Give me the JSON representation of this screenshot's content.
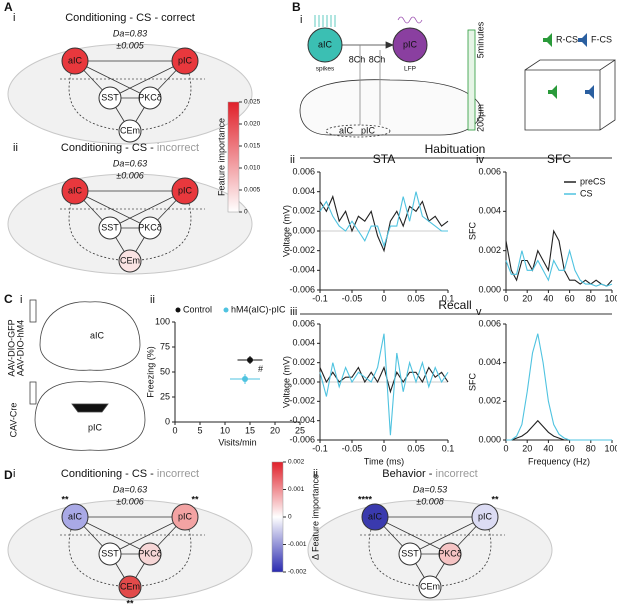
{
  "panel_labels": [
    "A",
    "B",
    "C",
    "D"
  ],
  "networks": [
    {
      "sub": "i",
      "title": [
        "Conditioning - CS - correct"
      ],
      "da": [
        "Da=0.83",
        "±0.005"
      ],
      "nodes": [
        {
          "label": "aIC",
          "color": "#e8383d"
        },
        {
          "label": "pIC",
          "color": "#e8383d"
        },
        {
          "label": "SST",
          "color": "#ffffff"
        },
        {
          "label": "PKCδ",
          "color": "#ffffff"
        },
        {
          "label": "CEm",
          "color": "#ffffff"
        }
      ]
    },
    {
      "sub": "ii",
      "title": [
        "Conditioning - CS - ",
        "incorrect"
      ],
      "da": [
        "Da=0.63",
        "±0.006"
      ],
      "nodes": [
        {
          "label": "aIC",
          "color": "#e8383d"
        },
        {
          "label": "pIC",
          "color": "#e8383d"
        },
        {
          "label": "SST",
          "color": "#ffffff"
        },
        {
          "label": "PKCδ",
          "color": "#ffffff"
        },
        {
          "label": "CEm",
          "color": "#fbe3e3"
        }
      ]
    },
    {
      "sub": "i",
      "title": [
        "Conditioning - CS - ",
        "incorrect"
      ],
      "da": [
        "Da=0.63",
        "±0.006"
      ],
      "nodes": [
        {
          "label": "aIC",
          "color": "#a9a9e6",
          "stars": "**"
        },
        {
          "label": "pIC",
          "color": "#f3a3a3",
          "stars": "**"
        },
        {
          "label": "SST",
          "color": "#ffffff"
        },
        {
          "label": "PKCδ",
          "color": "#f6d6d6"
        },
        {
          "label": "CEm",
          "color": "#e24a4a",
          "stars": "**"
        }
      ]
    },
    {
      "sub": "ii",
      "title": [
        "Behavior - ",
        "incorrect"
      ],
      "da": [
        "Da=0.53",
        "±0.008"
      ],
      "nodes": [
        {
          "label": "aIC",
          "color": "#3a3aae",
          "stars": "****"
        },
        {
          "label": "pIC",
          "color": "#dcdcf4",
          "stars": "**"
        },
        {
          "label": "SST",
          "color": "#ffffff"
        },
        {
          "label": "PKCδ",
          "color": "#f5c4c4"
        },
        {
          "label": "CEm",
          "color": "#ffffff"
        }
      ]
    }
  ],
  "colorbars": [
    {
      "label": "Feature importance",
      "lim": [
        0,
        0.025
      ],
      "colors": [
        "#ffffff",
        "#e0202a"
      ],
      "ticks": [
        0.025,
        {
          "value": 0.02,
          "label": "0.020"
        },
        0.015,
        {
          "value": 0.01,
          "label": "0.010"
        },
        0.005,
        0
      ]
    },
    {
      "label": "Δ Feature importance",
      "lim": [
        -0.002,
        0.002
      ],
      "colors": [
        "#2a2ab0",
        "#ffffff",
        "#e0202a"
      ],
      "ticks": [
        0.002,
        0.001,
        0,
        -0.001,
        -0.002
      ]
    }
  ],
  "b_diagram": {
    "sub": "i",
    "regions": [
      "aIC",
      "pIC"
    ],
    "signals": [
      "spikes",
      "LFP"
    ],
    "channels": [
      "8Ch",
      "8Ch"
    ],
    "brain_regions": [
      "aIC",
      "pIC"
    ],
    "time_scale": "5minutes",
    "depth_scale": "200µm",
    "sounds": [
      "R-CS",
      "F-CS"
    ]
  },
  "sections": [
    "Habituation",
    "Recall"
  ],
  "line_charts": [
    {
      "type": "line",
      "sub": "ii",
      "title": "STA",
      "y_label": "Voltage (mV)",
      "x": [
        -0.1,
        -0.09,
        -0.08,
        -0.07,
        -0.06,
        -0.05,
        -0.04,
        -0.03,
        -0.02,
        -0.01,
        0,
        0.01,
        0.02,
        0.03,
        0.04,
        0.05,
        0.06,
        0.07,
        0.08,
        0.09,
        0.1
      ],
      "xlim": [
        -0.1,
        0.1
      ],
      "xticks": [
        -0.1,
        -0.05,
        0,
        0.05,
        0.1
      ],
      "ylim": [
        -0.006,
        0.006
      ],
      "yticks": [
        0.006,
        0.004,
        0.002,
        {
          "value": 0,
          "label": "0.000"
        },
        -0.002,
        -0.004,
        -0.006
      ],
      "series": [
        {
          "name": "preCS",
          "color": "#222222",
          "values": [
            0.003,
            0.002,
            0.0035,
            0.001,
            0.002,
            0,
            0.0015,
            0.001,
            0.002,
            -0.0005,
            -0.002,
            0.001,
            0.002,
            0.0005,
            0.0025,
            0.002,
            0.003,
            0.001,
            0.0015,
            0.0005,
            0.001
          ]
        },
        {
          "name": "CS",
          "color": "#4fc3e0",
          "values": [
            0.002,
            0.003,
            0.0015,
            0.0005,
            0,
            0.001,
            0,
            -0.001,
            0.0005,
            0.0005,
            -0.0015,
            0.0005,
            0.0005,
            0.0035,
            0.001,
            0.004,
            0.0015,
            0.001,
            0.0005,
            0,
            0
          ]
        }
      ]
    },
    {
      "type": "line",
      "sub": "iv",
      "title": "SFC",
      "y_label": "SFC",
      "legend": true,
      "x": [
        0,
        5,
        10,
        15,
        20,
        25,
        30,
        35,
        40,
        45,
        50,
        55,
        60,
        65,
        70,
        75,
        80,
        85,
        90,
        95,
        100
      ],
      "xlim": [
        0,
        100
      ],
      "xticks": [
        0,
        20,
        40,
        60,
        80,
        100
      ],
      "ylim": [
        0,
        0.006
      ],
      "yticks": [
        {
          "value": 0,
          "label": "0.000"
        },
        0.002,
        0.004,
        0.006
      ],
      "series": [
        {
          "name": "preCS",
          "color": "#222222",
          "values": [
            0.0025,
            0.001,
            0.0005,
            0.0015,
            0.0015,
            0.001,
            0.002,
            0.0015,
            0.001,
            0.003,
            0.0025,
            0.001,
            0.0005,
            0.0005,
            0.0003,
            0.0005,
            0.0003,
            0.0005,
            0.0003,
            0.0002,
            0.0005
          ]
        },
        {
          "name": "CS",
          "color": "#4fc3e0",
          "values": [
            0.0015,
            0.0008,
            0.0008,
            0.002,
            0.001,
            0.001,
            0.0015,
            0.001,
            0.0005,
            0.0015,
            0.001,
            0.001,
            0.002,
            0.001,
            0.0005,
            0.0003,
            0.0003,
            0.0002,
            0.0003,
            0.0002,
            0.0003
          ]
        }
      ]
    },
    {
      "type": "line",
      "sub": "iii",
      "y_label": "Voltage (mV)",
      "x_label": "Time (ms)",
      "x": [
        -0.1,
        -0.09,
        -0.08,
        -0.07,
        -0.06,
        -0.05,
        -0.04,
        -0.03,
        -0.02,
        -0.01,
        0,
        0.01,
        0.02,
        0.03,
        0.04,
        0.05,
        0.06,
        0.07,
        0.08,
        0.09,
        0.1
      ],
      "xlim": [
        -0.1,
        0.1
      ],
      "xticks": [
        -0.1,
        -0.05,
        0,
        0.05,
        0.1
      ],
      "ylim": [
        -0.006,
        0.006
      ],
      "yticks": [
        0.006,
        0.004,
        0.002,
        {
          "value": 0,
          "label": "0.000"
        },
        -0.002,
        -0.004,
        -0.006
      ],
      "series": [
        {
          "name": "preCS",
          "color": "#222222",
          "values": [
            0.0015,
            0,
            0.001,
            0,
            0.0005,
            0.0005,
            0.0015,
            0,
            0.001,
            0,
            0.0015,
            -0.001,
            0.001,
            0,
            0.001,
            0.001,
            0,
            0.0015,
            0.0005,
            0.001,
            0
          ]
        },
        {
          "name": "CS",
          "color": "#4fc3e0",
          "values": [
            0.001,
            -0.0015,
            0.002,
            -0.0005,
            0.0015,
            0,
            0.001,
            0.0005,
            0,
            0.0015,
            0.005,
            -0.0055,
            0.003,
            -0.001,
            0.002,
            0,
            0.002,
            -0.0005,
            0.0015,
            0,
            0.001
          ]
        }
      ]
    },
    {
      "type": "line",
      "sub": "v",
      "y_label": "SFC",
      "x_label": "Frequency (Hz)",
      "x": [
        0,
        5,
        10,
        15,
        20,
        25,
        30,
        35,
        40,
        45,
        50,
        55,
        60,
        65,
        70,
        75,
        80,
        85,
        90,
        95,
        100
      ],
      "xlim": [
        0,
        100
      ],
      "xticks": [
        0,
        20,
        40,
        60,
        80,
        100
      ],
      "ylim": [
        0,
        0.006
      ],
      "yticks": [
        {
          "value": 0,
          "label": "0.000"
        },
        0.002,
        0.004,
        0.006
      ],
      "series": [
        {
          "name": "preCS",
          "color": "#222222",
          "values": [
            0,
            0,
            0.0001,
            0.0002,
            0.0004,
            0.0007,
            0.001,
            0.0007,
            0.0004,
            0.0002,
            0.0001,
            0,
            0,
            0,
            0,
            0,
            0,
            0,
            0,
            0,
            0
          ]
        },
        {
          "name": "CS",
          "color": "#4fc3e0",
          "values": [
            0,
            0,
            0.0002,
            0.0008,
            0.0025,
            0.0045,
            0.0055,
            0.004,
            0.002,
            0.0008,
            0.0003,
            0.0001,
            0,
            0,
            0,
            0,
            0,
            0,
            0,
            0,
            0
          ]
        }
      ]
    }
  ],
  "c_diagram": {
    "sub": "i",
    "viruses": [
      "AAV-DIO-GFP",
      "AAV-DIO-hM4"
    ],
    "virus_colors": [
      "#111111",
      "#4fc3e0"
    ],
    "retro": "CAV-Cre",
    "regions": [
      "aIC",
      "pIC"
    ]
  },
  "scatter": {
    "type": "scatter",
    "sub": "ii",
    "x_label": "Visits/min",
    "y_label": "Freezing (%)",
    "xlim": [
      0,
      25
    ],
    "xticks": [
      0,
      5,
      10,
      15,
      20,
      25
    ],
    "ylim": [
      0,
      100
    ],
    "yticks": [
      0,
      25,
      50,
      75,
      100
    ],
    "annotation": "#",
    "series": [
      {
        "name": "Control",
        "color": "#111111",
        "x": [
          15
        ],
        "values": [
          62
        ],
        "x_err": [
          2.5
        ],
        "y_err": [
          4
        ]
      },
      {
        "name": "hM4(aIC)-pIC",
        "color": "#4fc3e0",
        "x": [
          14
        ],
        "values": [
          43
        ],
        "x_err": [
          3
        ],
        "y_err": [
          5
        ]
      }
    ]
  }
}
